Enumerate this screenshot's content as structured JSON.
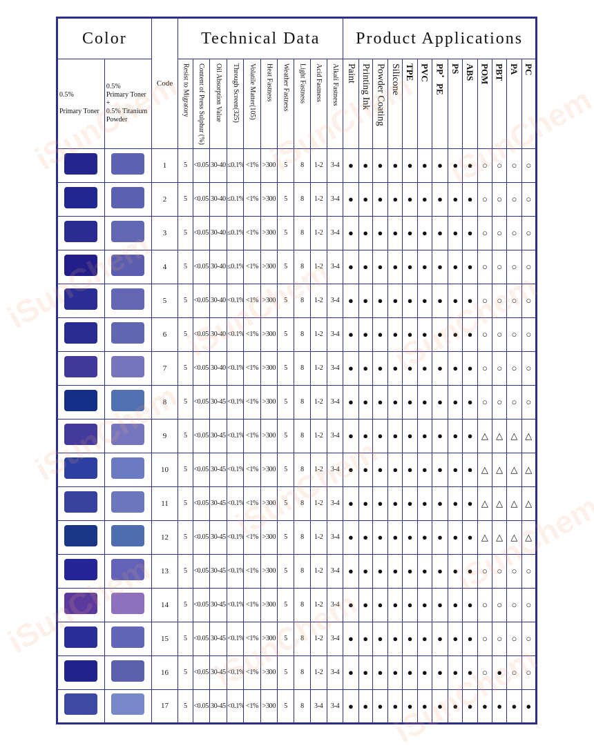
{
  "header": {
    "color": "Color",
    "technical": "Technical Data",
    "applications": "Product Applications",
    "code": "Code",
    "shade_primary_pct": "0.5%",
    "shade_primary_label": "Primary Toner",
    "shade_tint_pct": "0.5%",
    "shade_tint_label": "Primary Toner",
    "shade_tint_plus": "+",
    "shade_tint_extra": "0.5% Titanium",
    "shade_tint_extra2": "Powder"
  },
  "tech_columns": [
    "Resist to Migratory",
    "Content of Press Sulphur (%)",
    "Oil Absorption Value",
    "Through Screen(325)",
    "Volatile Matter(105)",
    "Heat Fastness",
    "Weather Fastness",
    "Light Fastness",
    "Acid Fastness",
    "Alkali Fastness"
  ],
  "app_columns": [
    "Paint",
    "Printing Ink",
    "Powder Coating",
    "Silicone",
    "TPE",
    "PVC",
    "PP．PE",
    "PS",
    "ABS",
    "POM",
    "PBT",
    "PA",
    "PC"
  ],
  "watermark": "iSunChem",
  "rows": [
    {
      "code": "1",
      "primary": "#24268e",
      "tint": "#5d63b2",
      "tech": [
        "5",
        "<0.05",
        "30-40",
        "≤0.1%",
        "<1%",
        ">300",
        "5",
        "8",
        "1-2",
        "3-4"
      ],
      "apps": [
        "●",
        "●",
        "●",
        "●",
        "●",
        "●",
        "●",
        "●",
        "●",
        "○",
        "○",
        "○",
        "○"
      ]
    },
    {
      "code": "2",
      "primary": "#212791",
      "tint": "#5a61b1",
      "tech": [
        "5",
        "<0.05",
        "30-40",
        "≤0.1%",
        "<1%",
        ">300",
        "5",
        "8",
        "1-2",
        "3-4"
      ],
      "apps": [
        "●",
        "●",
        "●",
        "●",
        "●",
        "●",
        "●",
        "●",
        "●",
        "○",
        "○",
        "○",
        "○"
      ]
    },
    {
      "code": "3",
      "primary": "#2a2c92",
      "tint": "#6167b3",
      "tech": [
        "5",
        "<0.05",
        "30-40",
        "≤0.1%",
        "<1%",
        ">300",
        "5",
        "8",
        "1-2",
        "3-4"
      ],
      "apps": [
        "●",
        "●",
        "●",
        "●",
        "●",
        "●",
        "●",
        "●",
        "●",
        "○",
        "○",
        "○",
        "○"
      ]
    },
    {
      "code": "4",
      "primary": "#221f8b",
      "tint": "#5a5db0",
      "tech": [
        "5",
        "<0.05",
        "30-40",
        "≤0.1%",
        "<1%",
        ">300",
        "5",
        "8",
        "1-2",
        "3-4"
      ],
      "apps": [
        "●",
        "●",
        "●",
        "●",
        "●",
        "●",
        "●",
        "●",
        "●",
        "○",
        "○",
        "○",
        "○"
      ]
    },
    {
      "code": "5",
      "primary": "#2a2e94",
      "tint": "#6266b4",
      "tech": [
        "5",
        "<0.05",
        "30-40",
        "<0.1%",
        "<1%",
        ">300",
        "5",
        "8",
        "1-2",
        "3-4"
      ],
      "apps": [
        "●",
        "●",
        "●",
        "●",
        "●",
        "●",
        "●",
        "●",
        "●",
        "○",
        "○",
        "○",
        "○"
      ]
    },
    {
      "code": "6",
      "primary": "#282b90",
      "tint": "#6166b2",
      "tech": [
        "5",
        "<0.05",
        "30-40",
        "<0.1%",
        "<1%",
        ">300",
        "5",
        "8",
        "1-2",
        "3-4"
      ],
      "apps": [
        "●",
        "●",
        "●",
        "●",
        "●",
        "●",
        "●",
        "●",
        "●",
        "○",
        "○",
        "○",
        "○"
      ]
    },
    {
      "code": "7",
      "primary": "#41389a",
      "tint": "#7675bb",
      "tech": [
        "5",
        "<0.05",
        "30-40",
        "<0.1%",
        "<1%",
        ">300",
        "5",
        "8",
        "1-2",
        "3-4"
      ],
      "apps": [
        "●",
        "●",
        "●",
        "●",
        "●",
        "●",
        "●",
        "●",
        "●",
        "○",
        "○",
        "○",
        "○"
      ]
    },
    {
      "code": "8",
      "primary": "#152e86",
      "tint": "#5170b2",
      "tech": [
        "5",
        "<0.05",
        "30-45",
        "<0.1%",
        "<1%",
        ">300",
        "5",
        "8",
        "1-2",
        "3-4"
      ],
      "apps": [
        "●",
        "●",
        "●",
        "●",
        "●",
        "●",
        "●",
        "●",
        "●",
        "○",
        "○",
        "○",
        "○"
      ]
    },
    {
      "code": "9",
      "primary": "#443a9c",
      "tint": "#7676be",
      "tech": [
        "5",
        "<0.05",
        "30-45",
        "<0.1%",
        "<1%",
        ">300",
        "5",
        "8",
        "1-2",
        "3-4"
      ],
      "apps": [
        "●",
        "●",
        "●",
        "●",
        "●",
        "●",
        "●",
        "●",
        "●",
        "△",
        "△",
        "△",
        "△"
      ]
    },
    {
      "code": "10",
      "primary": "#2d3fa0",
      "tint": "#6b7bc3",
      "tech": [
        "5",
        "<0.05",
        "30-45",
        "<0.1%",
        "<1%",
        ">300",
        "5",
        "8",
        "1-2",
        "3-4"
      ],
      "apps": [
        "●",
        "●",
        "●",
        "●",
        "●",
        "●",
        "●",
        "●",
        "●",
        "△",
        "△",
        "△",
        "△"
      ]
    },
    {
      "code": "11",
      "primary": "#37429d",
      "tint": "#6c76bc",
      "tech": [
        "5",
        "<0.05",
        "30-45",
        "<0.1%",
        "<1%",
        ">300",
        "5",
        "8",
        "1-2",
        "3-4"
      ],
      "apps": [
        "●",
        "●",
        "●",
        "●",
        "●",
        "●",
        "●",
        "●",
        "●",
        "△",
        "△",
        "△",
        "△"
      ]
    },
    {
      "code": "12",
      "primary": "#183586",
      "tint": "#4e6db0",
      "tech": [
        "5",
        "<0.05",
        "30-45",
        "<0.1%",
        "<1%",
        ">300",
        "5",
        "8",
        "1-2",
        "3-4"
      ],
      "apps": [
        "●",
        "●",
        "●",
        "●",
        "●",
        "●",
        "●",
        "●",
        "●",
        "△",
        "△",
        "△",
        "△"
      ]
    },
    {
      "code": "13",
      "primary": "#25259a",
      "tint": "#6162b8",
      "tech": [
        "5",
        "<0.05",
        "30-45",
        "<0.1%",
        "<1%",
        ">300",
        "5",
        "8",
        "1-2",
        "3-4"
      ],
      "apps": [
        "●",
        "●",
        "●",
        "●",
        "●",
        "●",
        "●",
        "●",
        "●",
        "○",
        "○",
        "○",
        "○"
      ]
    },
    {
      "code": "14",
      "primary": "#5b3a9e",
      "tint": "#8c6fbd",
      "tech": [
        "5",
        "<0.05",
        "30-45",
        "<0.1%",
        "<1%",
        ">300",
        "5",
        "8",
        "1-2",
        "3-4"
      ],
      "apps": [
        "●",
        "●",
        "●",
        "●",
        "●",
        "●",
        "●",
        "●",
        "●",
        "○",
        "○",
        "○",
        "○"
      ]
    },
    {
      "code": "15",
      "primary": "#292e98",
      "tint": "#6065b7",
      "tech": [
        "5",
        "<0.05",
        "30-45",
        "<0.1%",
        "<1%",
        ">300",
        "5",
        "8",
        "1-2",
        "3-4"
      ],
      "apps": [
        "●",
        "●",
        "●",
        "●",
        "●",
        "●",
        "●",
        "●",
        "●",
        "○",
        "○",
        "○",
        "○"
      ]
    },
    {
      "code": "16",
      "primary": "#1f238b",
      "tint": "#5a5fae",
      "tech": [
        "5",
        "<0.05",
        "30-45",
        "<0.1%",
        "<1%",
        ">300",
        "5",
        "8",
        "1-2",
        "3-4"
      ],
      "apps": [
        "●",
        "●",
        "●",
        "●",
        "●",
        "●",
        "●",
        "●",
        "●",
        "○",
        "●",
        "○",
        "○"
      ]
    },
    {
      "code": "17",
      "primary": "#3c4aa4",
      "tint": "#7688c7",
      "tech": [
        "5",
        "<0.05",
        "30-45",
        "<0.1%",
        "<1%",
        ">300",
        "5",
        "8",
        "3-4",
        "3-4"
      ],
      "apps": [
        "●",
        "●",
        "●",
        "●",
        "●",
        "●",
        "●",
        "●",
        "●",
        "●",
        "●",
        "●",
        "●"
      ]
    }
  ]
}
